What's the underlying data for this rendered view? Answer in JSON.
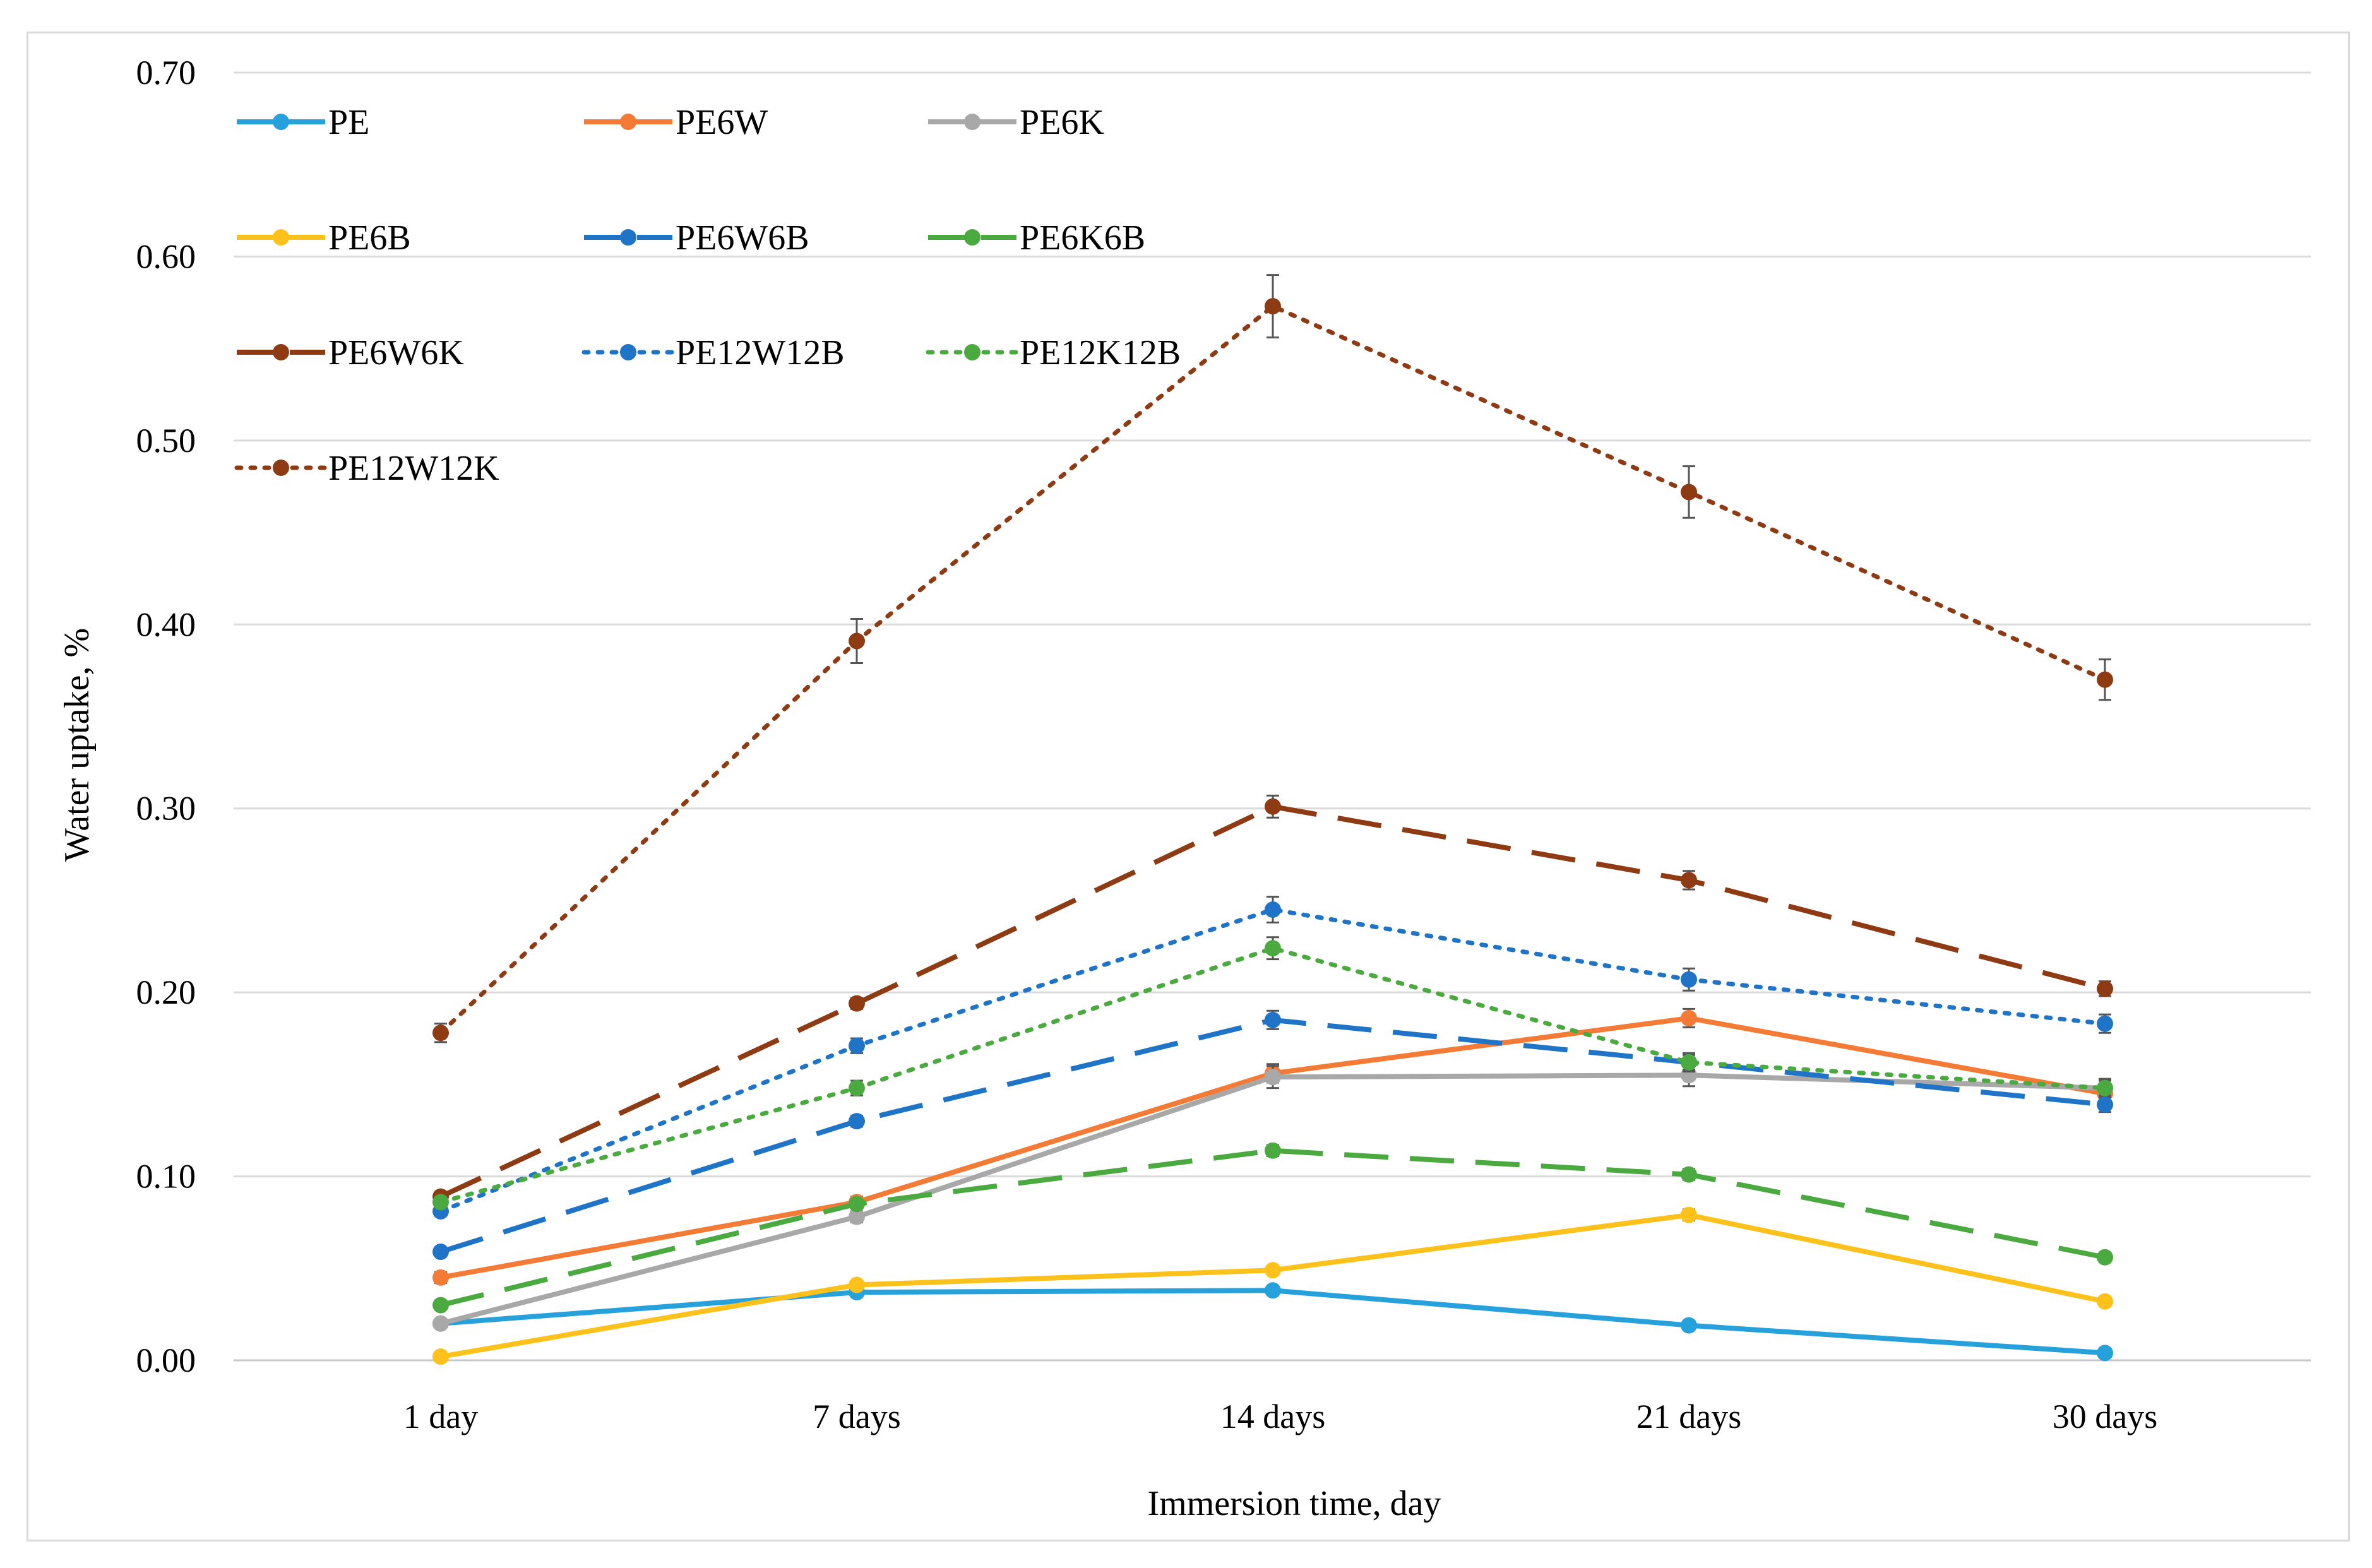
{
  "chart_data": {
    "type": "line",
    "title": "",
    "xlabel": "Immersion time, day",
    "ylabel": "Water uptake, %",
    "categories": [
      "1 day",
      "7 days",
      "14 days",
      "21 days",
      "30 days"
    ],
    "ylim": [
      0,
      0.7
    ],
    "yticks": [
      0.0,
      0.1,
      0.2,
      0.3,
      0.4,
      0.5,
      0.6,
      0.7
    ],
    "ytick_labels": [
      "0.00",
      "0.10",
      "0.20",
      "0.30",
      "0.40",
      "0.50",
      "0.60",
      "0.70"
    ],
    "grid": true,
    "legend_position": "top-left",
    "series": [
      {
        "name": "PE",
        "color": "#27a1dc",
        "dash": "solid",
        "values": [
          0.02,
          0.037,
          0.038,
          0.019,
          0.004
        ],
        "errors": [
          0.002,
          0.002,
          0.002,
          0.002,
          0.001
        ]
      },
      {
        "name": "PE6W",
        "color": "#f47b36",
        "dash": "solid",
        "values": [
          0.045,
          0.086,
          0.156,
          0.186,
          0.145
        ],
        "errors": [
          0.003,
          0.003,
          0.005,
          0.005,
          0.004
        ]
      },
      {
        "name": "PE6K",
        "color": "#a8a8a8",
        "dash": "solid",
        "values": [
          0.02,
          0.078,
          0.154,
          0.155,
          0.148
        ],
        "errors": [
          0.002,
          0.003,
          0.006,
          0.006,
          0.005
        ]
      },
      {
        "name": "PE6B",
        "color": "#fdc11b",
        "dash": "solid",
        "values": [
          0.002,
          0.041,
          0.049,
          0.079,
          0.032
        ],
        "errors": [
          0.001,
          0.002,
          0.002,
          0.003,
          0.002
        ]
      },
      {
        "name": "PE6W6B",
        "color": "#1f74c8",
        "dash": "dash",
        "values": [
          0.059,
          0.13,
          0.185,
          0.162,
          0.139
        ],
        "errors": [
          0.002,
          0.003,
          0.005,
          0.004,
          0.004
        ]
      },
      {
        "name": "PE6K6B",
        "color": "#4aaa3f",
        "dash": "dash",
        "values": [
          0.03,
          0.085,
          0.114,
          0.101,
          0.056
        ],
        "errors": [
          0.002,
          0.002,
          0.003,
          0.003,
          0.002
        ]
      },
      {
        "name": "PE6W6K",
        "color": "#8e3b14",
        "dash": "dash",
        "values": [
          0.089,
          0.194,
          0.301,
          0.261,
          0.202
        ],
        "errors": [
          0.002,
          0.003,
          0.006,
          0.005,
          0.004
        ]
      },
      {
        "name": "PE12W12B",
        "color": "#1f74c8",
        "dash": "dot",
        "values": [
          0.081,
          0.171,
          0.245,
          0.207,
          0.183
        ],
        "errors": [
          0.002,
          0.004,
          0.007,
          0.006,
          0.005
        ]
      },
      {
        "name": "PE12K12B",
        "color": "#4aaa3f",
        "dash": "dot",
        "values": [
          0.086,
          0.148,
          0.224,
          0.162,
          0.148
        ],
        "errors": [
          0.002,
          0.004,
          0.006,
          0.005,
          0.004
        ]
      },
      {
        "name": "PE12W12K",
        "color": "#8e3b14",
        "dash": "dot",
        "values": [
          0.178,
          0.391,
          0.573,
          0.472,
          0.37
        ],
        "errors": [
          0.005,
          0.012,
          0.017,
          0.014,
          0.011
        ]
      }
    ]
  }
}
